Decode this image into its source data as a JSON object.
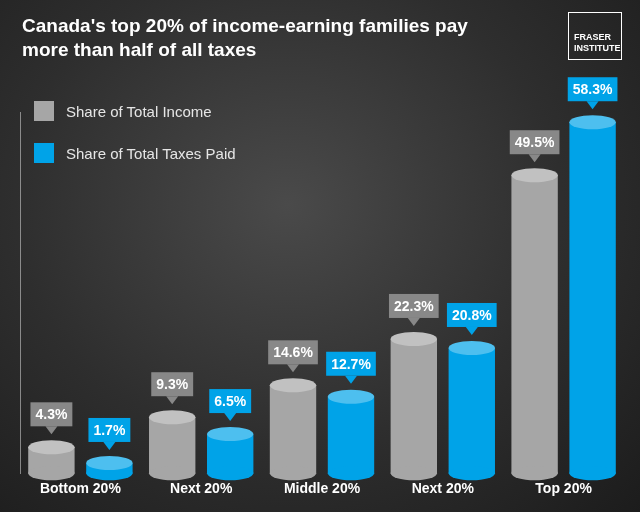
{
  "chart_data": {
    "type": "bar",
    "title": "Canada's top 20% of income-earning families pay more than half of all taxes",
    "categories": [
      "Bottom 20%",
      "Next 20%",
      "Middle 20%",
      "Next 20%",
      "Top 20%"
    ],
    "series": [
      {
        "name": "Share of Total Income",
        "color": "#a6a6a6",
        "values": [
          4.3,
          9.3,
          14.6,
          22.3,
          49.5
        ],
        "value_labels": [
          "4.3%",
          "9.3%",
          "14.6%",
          "22.3%",
          "49.5%"
        ]
      },
      {
        "name": "Share of Total Taxes Paid",
        "color": "#00a3e8",
        "values": [
          1.7,
          6.5,
          12.7,
          20.8,
          58.3
        ],
        "value_labels": [
          "1.7%",
          "6.5%",
          "12.7%",
          "20.8%",
          "58.3%"
        ]
      }
    ],
    "ylim": [
      0,
      60
    ],
    "grid": false,
    "legend": "top-left",
    "data_labels": true,
    "tick_labels": "x",
    "annotations": [
      "FRASER INSTITUTE"
    ]
  }
}
